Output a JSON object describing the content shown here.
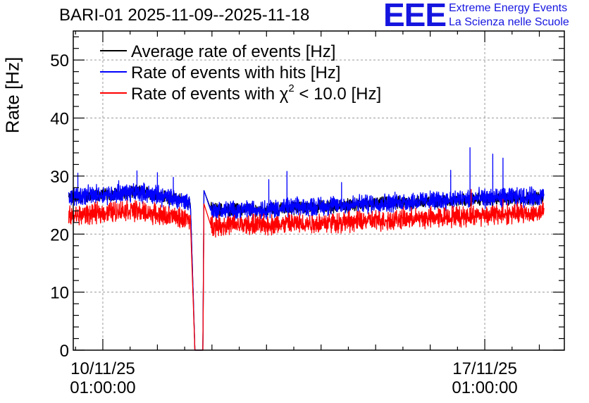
{
  "chart_data": {
    "type": "line",
    "title": "BARI-01 2025-11-09--2025-11-18",
    "ylabel": "Rate [Hz]",
    "xlabel": "",
    "ylim": [
      0,
      55
    ],
    "y_ticks": [
      0,
      10,
      20,
      30,
      40,
      50
    ],
    "x_range_days": [
      "2025-11-09 12:00",
      "2025-11-18 12:00"
    ],
    "x_ticks": [
      {
        "date": "2025-11-10 01:00",
        "line1": "10/11/25",
        "line2": "01:00:00"
      },
      {
        "date": "2025-11-17 01:00",
        "line1": "17/11/25",
        "line2": "01:00:00"
      }
    ],
    "grid": true,
    "legend_position": "top-left",
    "series": [
      {
        "name": "Average rate of events [Hz]",
        "color": "#000000",
        "points": [
          [
            "2025-11-09 10:00",
            26.3
          ],
          [
            "2025-11-10 18:00",
            27.3
          ],
          [
            "2025-11-11 15:30",
            25.6
          ],
          [
            "2025-11-11 17:30",
            0.0
          ],
          [
            "2025-11-11 21:00",
            0.0
          ],
          [
            "2025-11-11 21:30",
            27.5
          ],
          [
            "2025-11-12 00:30",
            24.3
          ],
          [
            "2025-11-13 00:00",
            24.2
          ],
          [
            "2025-11-15 00:00",
            25.2
          ],
          [
            "2025-11-17 00:00",
            26.0
          ],
          [
            "2025-11-18 03:00",
            26.2
          ]
        ]
      },
      {
        "name": "Rate of events with hits [Hz]",
        "color": "#0000ff",
        "points": [
          [
            "2025-11-09 10:00",
            26.5
          ],
          [
            "2025-11-10 18:00",
            27.2
          ],
          [
            "2025-11-11 15:30",
            25.5
          ],
          [
            "2025-11-11 17:30",
            0.0
          ],
          [
            "2025-11-11 21:00",
            0.0
          ],
          [
            "2025-11-11 21:30",
            27.5
          ],
          [
            "2025-11-12 00:30",
            24.0
          ],
          [
            "2025-11-13 00:00",
            24.3
          ],
          [
            "2025-11-15 00:00",
            25.3
          ],
          [
            "2025-11-17 00:00",
            26.2
          ],
          [
            "2025-11-18 03:00",
            26.5
          ]
        ],
        "spikes": [
          [
            "2025-11-09 14:00",
            30.5
          ],
          [
            "2025-11-10 08:00",
            29.2
          ],
          [
            "2025-11-10 16:00",
            30.9
          ],
          [
            "2025-11-11 01:00",
            30.6
          ],
          [
            "2025-11-11 08:00",
            29.8
          ],
          [
            "2025-11-13 02:00",
            29.4
          ],
          [
            "2025-11-13 10:00",
            30.8
          ],
          [
            "2025-11-14 10:00",
            28.9
          ],
          [
            "2025-11-16 10:00",
            31.0
          ],
          [
            "2025-11-16 18:30",
            34.9
          ],
          [
            "2025-11-17 04:30",
            33.8
          ],
          [
            "2025-11-17 09:00",
            33.1
          ]
        ]
      },
      {
        "name": "Rate of events with χ² < 10.0 [Hz]",
        "color": "#ff0000",
        "points": [
          [
            "2025-11-09 10:00",
            23.0
          ],
          [
            "2025-11-10 12:00",
            24.2
          ],
          [
            "2025-11-11 15:30",
            22.5
          ],
          [
            "2025-11-11 17:30",
            0.0
          ],
          [
            "2025-11-11 21:00",
            0.0
          ],
          [
            "2025-11-11 21:30",
            25.2
          ],
          [
            "2025-11-12 00:30",
            21.5
          ],
          [
            "2025-11-13 00:00",
            21.6
          ],
          [
            "2025-11-15 00:00",
            22.3
          ],
          [
            "2025-11-17 00:00",
            23.3
          ],
          [
            "2025-11-18 03:00",
            23.7
          ]
        ],
        "spikes": [
          [
            "2025-11-16 19:00",
            27.7
          ],
          [
            "2025-11-17 09:00",
            26.0
          ]
        ]
      }
    ]
  },
  "legend": [
    {
      "label": "Average rate of events [Hz]",
      "color": "#000000"
    },
    {
      "label": "Rate of events with hits [Hz]",
      "color": "#0000ff"
    },
    {
      "label_prefix": "Rate of events with χ",
      "label_sup": "2",
      "label_suffix": " < 10.0 [Hz]",
      "color": "#ff0000"
    }
  ],
  "logo": {
    "mark": "EEE",
    "line1": "Extreme Energy Events",
    "line2": "La Scienza nelle Scuole",
    "color": "#1515e0"
  }
}
